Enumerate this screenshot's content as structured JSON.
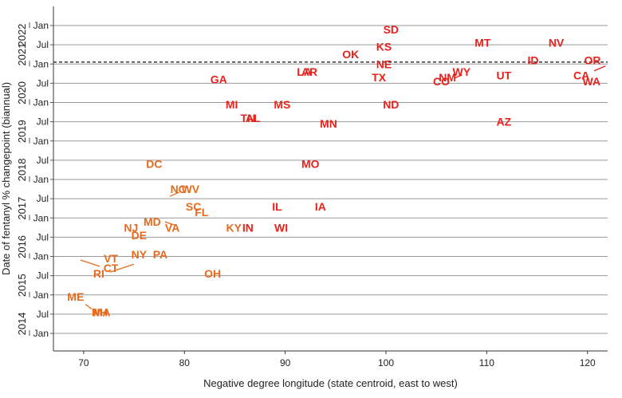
{
  "chart_data": {
    "type": "scatter",
    "xlabel": "Negative degree longitude (state centroid, east to west)",
    "ylabel": "Date of fentanyl % changepoint (biannual)",
    "xlim": [
      67,
      122
    ],
    "x_ticks": [
      70,
      80,
      90,
      100,
      110,
      120
    ],
    "y_ticks": [
      {
        "t": 2014.0,
        "label": "Jan"
      },
      {
        "t": 2014.5,
        "label": "Jul"
      },
      {
        "t": 2015.0,
        "label": "Jan"
      },
      {
        "t": 2015.5,
        "label": "Jul"
      },
      {
        "t": 2016.0,
        "label": "Jan"
      },
      {
        "t": 2016.5,
        "label": "Jul"
      },
      {
        "t": 2017.0,
        "label": "Jan"
      },
      {
        "t": 2017.5,
        "label": "Jul"
      },
      {
        "t": 2018.0,
        "label": "Jan"
      },
      {
        "t": 2018.5,
        "label": "Jul"
      },
      {
        "t": 2019.0,
        "label": "Jan"
      },
      {
        "t": 2019.5,
        "label": "Jul"
      },
      {
        "t": 2020.0,
        "label": "Jan"
      },
      {
        "t": 2020.5,
        "label": "Jul"
      },
      {
        "t": 2021.0,
        "label": "Jan"
      },
      {
        "t": 2021.5,
        "label": "Jul"
      },
      {
        "t": 2022.0,
        "label": "Jan"
      }
    ],
    "years": [
      {
        "label": "2014",
        "t": 2014.25
      },
      {
        "label": "2015",
        "t": 2015.25
      },
      {
        "label": "2016",
        "t": 2016.25
      },
      {
        "label": "2017",
        "t": 2017.25
      },
      {
        "label": "2018",
        "t": 2018.25
      },
      {
        "label": "2019",
        "t": 2019.25
      },
      {
        "label": "2020",
        "t": 2020.25
      },
      {
        "label": "2021",
        "t": 2021.25
      },
      {
        "label": "2022",
        "t": 2021.75
      }
    ],
    "reference_line": {
      "t": 2021.05,
      "style": "dashed"
    },
    "grid": true,
    "points": [
      {
        "state": "SD",
        "x": 100.5,
        "t": 2021.9,
        "color": "#e8221c"
      },
      {
        "state": "KS",
        "x": 99.8,
        "t": 2021.45,
        "color": "#e8221c"
      },
      {
        "state": "MT",
        "x": 109.6,
        "t": 2021.55,
        "color": "#e8221c"
      },
      {
        "state": "NV",
        "x": 116.9,
        "t": 2021.55,
        "color": "#e8221c"
      },
      {
        "state": "OK",
        "x": 96.5,
        "t": 2021.25,
        "color": "#e8221c"
      },
      {
        "state": "ID",
        "x": 114.6,
        "t": 2021.1,
        "color": "#e8221c"
      },
      {
        "state": "OR",
        "x": 120.5,
        "t": 2021.1,
        "color": "#e8221c"
      },
      {
        "state": "NE",
        "x": 99.8,
        "t": 2021.0,
        "color": "#e8221c"
      },
      {
        "state": "AR",
        "x": 92.4,
        "t": 2020.8,
        "color": "#e8221c"
      },
      {
        "state": "LA",
        "x": 91.9,
        "t": 2020.8,
        "color": "#e8221c"
      },
      {
        "state": "WY",
        "x": 107.5,
        "t": 2020.8,
        "color": "#e8221c"
      },
      {
        "state": "GA",
        "x": 83.4,
        "t": 2020.6,
        "color": "#e8221c"
      },
      {
        "state": "TX",
        "x": 99.3,
        "t": 2020.65,
        "color": "#e8221c"
      },
      {
        "state": "NM",
        "x": 106.1,
        "t": 2020.65,
        "color": "#e8221c"
      },
      {
        "state": "UT",
        "x": 111.7,
        "t": 2020.7,
        "color": "#e8221c"
      },
      {
        "state": "CA",
        "x": 119.4,
        "t": 2020.7,
        "color": "#e8221c"
      },
      {
        "state": "CO",
        "x": 105.5,
        "t": 2020.55,
        "color": "#e8221c"
      },
      {
        "state": "WA",
        "x": 120.4,
        "t": 2020.55,
        "color": "#e8221c"
      },
      {
        "state": "MI",
        "x": 84.7,
        "t": 2019.95,
        "color": "#e8221c"
      },
      {
        "state": "MS",
        "x": 89.7,
        "t": 2019.95,
        "color": "#e8221c"
      },
      {
        "state": "ND",
        "x": 100.5,
        "t": 2019.95,
        "color": "#e8221c"
      },
      {
        "state": "TN",
        "x": 86.3,
        "t": 2019.6,
        "color": "#e8221c"
      },
      {
        "state": "AL",
        "x": 86.8,
        "t": 2019.6,
        "color": "#e8221c"
      },
      {
        "state": "AZ",
        "x": 111.7,
        "t": 2019.5,
        "color": "#e8221c"
      },
      {
        "state": "MN",
        "x": 94.3,
        "t": 2019.45,
        "color": "#e8221c"
      },
      {
        "state": "DC",
        "x": 77.0,
        "t": 2018.4,
        "color": "#e86a1c"
      },
      {
        "state": "MO",
        "x": 92.5,
        "t": 2018.4,
        "color": "#e8221c"
      },
      {
        "state": "NC",
        "x": 79.4,
        "t": 2017.75,
        "color": "#e86a1c"
      },
      {
        "state": "WV",
        "x": 80.6,
        "t": 2017.75,
        "color": "#e86a1c"
      },
      {
        "state": "SC",
        "x": 80.9,
        "t": 2017.3,
        "color": "#e86a1c"
      },
      {
        "state": "IL",
        "x": 89.2,
        "t": 2017.3,
        "color": "#e8221c"
      },
      {
        "state": "IA",
        "x": 93.5,
        "t": 2017.3,
        "color": "#e8221c"
      },
      {
        "state": "FL",
        "x": 81.7,
        "t": 2017.15,
        "color": "#e86a1c"
      },
      {
        "state": "MD",
        "x": 76.8,
        "t": 2016.9,
        "color": "#e86a1c"
      },
      {
        "state": "NJ",
        "x": 74.7,
        "t": 2016.75,
        "color": "#e86a1c"
      },
      {
        "state": "VA",
        "x": 78.8,
        "t": 2016.75,
        "color": "#e86a1c"
      },
      {
        "state": "KY",
        "x": 84.9,
        "t": 2016.75,
        "color": "#e86a1c"
      },
      {
        "state": "IN",
        "x": 86.3,
        "t": 2016.75,
        "color": "#e8221c"
      },
      {
        "state": "WI",
        "x": 89.6,
        "t": 2016.75,
        "color": "#e8221c"
      },
      {
        "state": "DE",
        "x": 75.5,
        "t": 2016.55,
        "color": "#e86a1c"
      },
      {
        "state": "PA",
        "x": 77.6,
        "t": 2016.05,
        "color": "#e86a1c"
      },
      {
        "state": "VT",
        "x": 72.7,
        "t": 2015.95,
        "color": "#e86a1c"
      },
      {
        "state": "NY",
        "x": 75.5,
        "t": 2016.05,
        "color": "#e86a1c"
      },
      {
        "state": "CT",
        "x": 72.7,
        "t": 2015.7,
        "color": "#e86a1c"
      },
      {
        "state": "RI",
        "x": 71.5,
        "t": 2015.55,
        "color": "#e86a1c"
      },
      {
        "state": "OH",
        "x": 82.8,
        "t": 2015.55,
        "color": "#e86a1c"
      },
      {
        "state": "ME",
        "x": 69.2,
        "t": 2014.95,
        "color": "#e86a1c"
      },
      {
        "state": "MA",
        "x": 71.8,
        "t": 2014.55,
        "color": "#e86a1c"
      },
      {
        "state": "NH",
        "x": 71.6,
        "t": 2014.55,
        "color": "#e86a1c"
      }
    ]
  }
}
